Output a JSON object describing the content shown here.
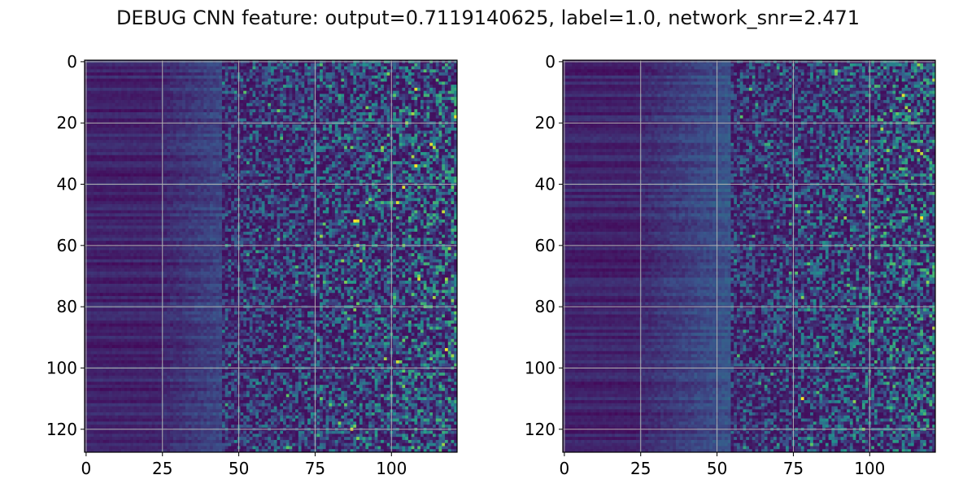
{
  "title": "DEBUG CNN feature: output=0.7119140625, label=1.0, network_snr=2.471",
  "chart_data": [
    {
      "type": "heatmap",
      "panel": "left",
      "rows": 128,
      "cols": 122,
      "colormap": "viridis",
      "value_range": [
        0,
        1
      ],
      "xlim": [
        -0.5,
        121.5
      ],
      "ylim": [
        127.5,
        -0.5
      ],
      "x_ticks": [
        0,
        25,
        50,
        75,
        100
      ],
      "y_ticks": [
        0,
        20,
        40,
        60,
        80,
        100,
        120
      ],
      "grid": true,
      "noise_onset_col": 45,
      "bright_pixels": [
        [
          9,
          108,
          0.95
        ],
        [
          17,
          107,
          0.85
        ],
        [
          27,
          113,
          0.95
        ],
        [
          34,
          108,
          1.0
        ],
        [
          41,
          104,
          0.95
        ],
        [
          45,
          93,
          0.8
        ],
        [
          52,
          88,
          1.0
        ],
        [
          52,
          89,
          0.95
        ],
        [
          60,
          89,
          0.85
        ],
        [
          65,
          90,
          0.9
        ],
        [
          72,
          85,
          0.8
        ],
        [
          112,
          80,
          0.75
        ],
        [
          118,
          83,
          0.8
        ],
        [
          120,
          87,
          0.95
        ],
        [
          123,
          89,
          0.8
        ]
      ]
    },
    {
      "type": "heatmap",
      "panel": "right",
      "rows": 128,
      "cols": 122,
      "colormap": "viridis",
      "value_range": [
        0,
        1
      ],
      "xlim": [
        -0.5,
        121.5
      ],
      "ylim": [
        127.5,
        -0.5
      ],
      "x_ticks": [
        0,
        25,
        50,
        75,
        100
      ],
      "y_ticks": [
        0,
        20,
        40,
        60,
        80,
        100,
        120
      ],
      "grid": true,
      "noise_onset_col": 55,
      "bright_pixels": [
        [
          11,
          111,
          0.95
        ],
        [
          15,
          112,
          0.85
        ],
        [
          29,
          116,
          0.95
        ],
        [
          30,
          117,
          0.9
        ],
        [
          110,
          78,
          1.0
        ],
        [
          66,
          80,
          0.75
        ],
        [
          63,
          100,
          0.7
        ],
        [
          35,
          88,
          0.7
        ]
      ]
    }
  ]
}
